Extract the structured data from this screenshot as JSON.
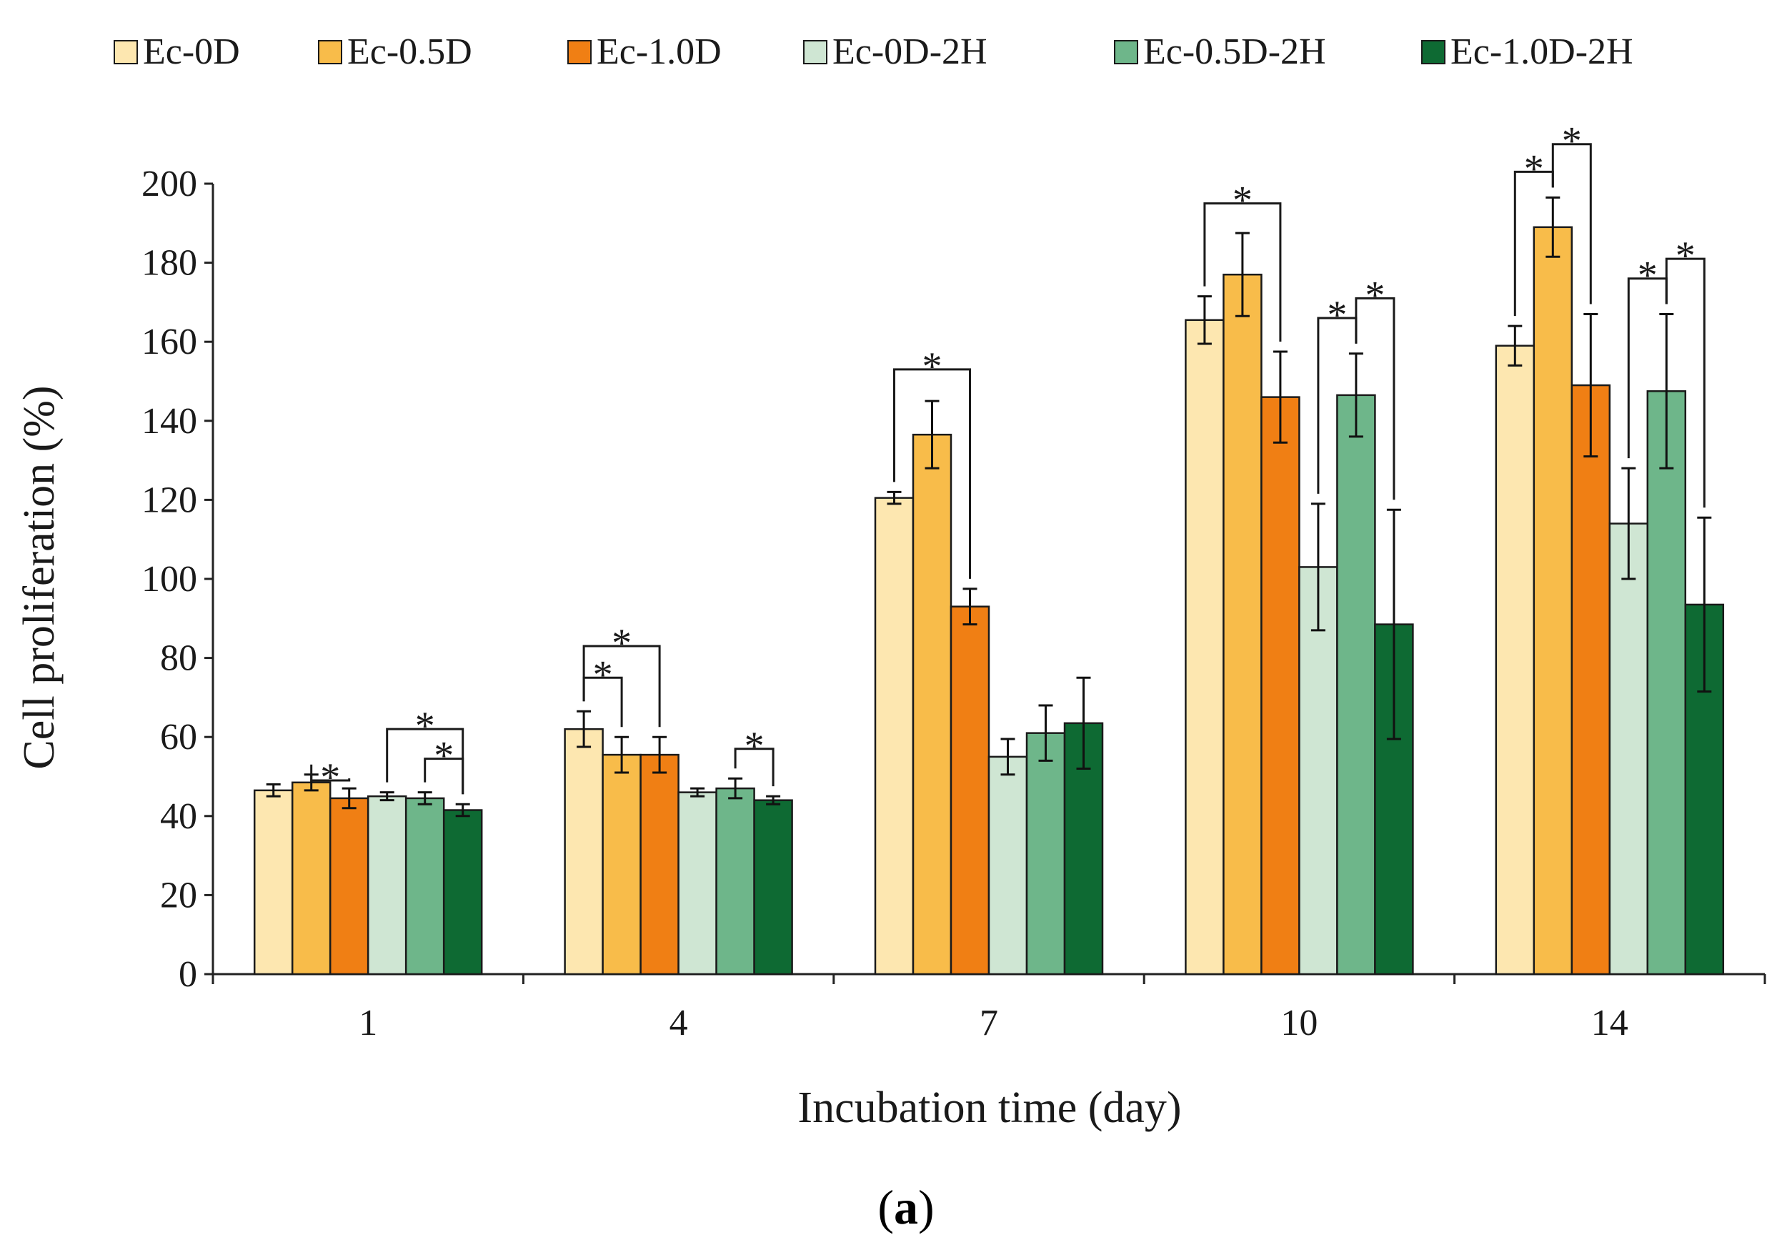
{
  "chart_data": {
    "type": "bar",
    "title": "",
    "xlabel": "Incubation time (day)",
    "ylabel": "Cell proliferation (%)",
    "ylim": [
      0,
      200
    ],
    "yticks": [
      0,
      20,
      40,
      60,
      80,
      100,
      120,
      140,
      160,
      180,
      200
    ],
    "grid": false,
    "legend_position": "top",
    "categories": [
      "1",
      "4",
      "7",
      "10",
      "14"
    ],
    "series": [
      {
        "name": "Ec-0D",
        "color": "#FDE7B0",
        "values": [
          46.5,
          62,
          120.5,
          165.5,
          159
        ],
        "errors": [
          1.5,
          4.5,
          1.5,
          6,
          5
        ]
      },
      {
        "name": "Ec-0.5D",
        "color": "#F8BC4A",
        "values": [
          48.5,
          55.5,
          136.5,
          177,
          189
        ],
        "errors": [
          2,
          4.5,
          8.5,
          10.5,
          7.5
        ]
      },
      {
        "name": "Ec-1.0D",
        "color": "#F07F14",
        "values": [
          44.5,
          55.5,
          93,
          146,
          149
        ],
        "errors": [
          2.5,
          4.5,
          4.5,
          11.5,
          18
        ]
      },
      {
        "name": "Ec-0D-2H",
        "color": "#CFE6D3",
        "values": [
          45,
          46,
          55,
          103,
          114
        ],
        "errors": [
          1,
          1,
          4.5,
          16,
          14
        ]
      },
      {
        "name": "Ec-0.5D-2H",
        "color": "#6EB68A",
        "values": [
          44.5,
          47,
          61,
          146.5,
          147.5
        ],
        "errors": [
          1.5,
          2.5,
          7,
          10.5,
          19.5
        ]
      },
      {
        "name": "Ec-1.0D-2H",
        "color": "#0E6A33",
        "values": [
          41.5,
          44,
          63.5,
          88.5,
          93.5
        ],
        "errors": [
          1.5,
          1,
          11.5,
          29,
          22
        ]
      }
    ],
    "significance": [
      {
        "category": 0,
        "from": 1,
        "to": 2,
        "level": 49,
        "label": "*"
      },
      {
        "category": 0,
        "from": 3,
        "to": 5,
        "level": 62,
        "label": "*"
      },
      {
        "category": 0,
        "from": 4,
        "to": 5,
        "level": 54.5,
        "label": "*"
      },
      {
        "category": 1,
        "from": 0,
        "to": 1,
        "level": 75,
        "label": "*"
      },
      {
        "category": 1,
        "from": 0,
        "to": 2,
        "level": 83,
        "label": "*"
      },
      {
        "category": 1,
        "from": 4,
        "to": 5,
        "level": 57,
        "label": "*"
      },
      {
        "category": 2,
        "from": 0,
        "to": 2,
        "level": 153,
        "label": "*"
      },
      {
        "category": 3,
        "from": 0,
        "to": 2,
        "level": 195,
        "label": "*"
      },
      {
        "category": 3,
        "from": 3,
        "to": 4,
        "level": 166,
        "label": "*"
      },
      {
        "category": 3,
        "from": 4,
        "to": 5,
        "level": 171,
        "label": "*"
      },
      {
        "category": 4,
        "from": 0,
        "to": 1,
        "level": 203,
        "label": "*"
      },
      {
        "category": 4,
        "from": 1,
        "to": 2,
        "level": 210,
        "label": "*"
      },
      {
        "category": 4,
        "from": 3,
        "to": 4,
        "level": 176,
        "label": "*"
      },
      {
        "category": 4,
        "from": 4,
        "to": 5,
        "level": 181,
        "label": "*"
      }
    ],
    "panel_label": {
      "open": "(",
      "letter": "a",
      "close": ")"
    }
  }
}
